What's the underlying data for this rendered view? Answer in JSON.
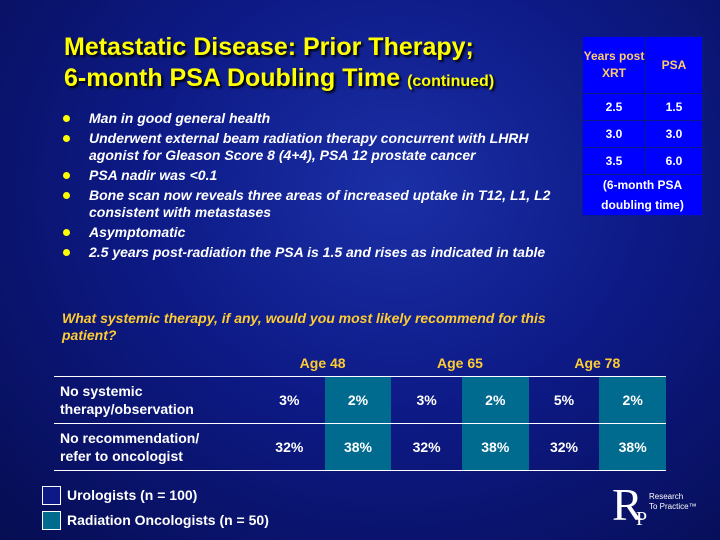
{
  "title": {
    "line1": "Metastatic Disease: Prior Therapy;",
    "line2": "6-month PSA Doubling Time",
    "continued": "(continued)"
  },
  "psa_table": {
    "headers": [
      "Years post XRT",
      "PSA"
    ],
    "rows": [
      [
        "2.5",
        "1.5"
      ],
      [
        "3.0",
        "3.0"
      ],
      [
        "3.5",
        "6.0"
      ]
    ],
    "footer": [
      "(6-month PSA",
      "doubling time)"
    ]
  },
  "bullets": [
    "Man in good general health",
    "Underwent external beam radiation therapy concurrent with LHRH agonist for Gleason Score 8 (4+4), PSA 12 prostate cancer",
    "PSA nadir was <0.1",
    "Bone scan now reveals three areas of increased uptake in T12, L1, L2 consistent with metastases",
    "Asymptomatic",
    "2.5 years post-radiation the PSA is 1.5 and rises as indicated in table"
  ],
  "question": "What systemic therapy, if any, would you most likely recommend for this patient?",
  "results": {
    "ages": [
      "Age 48",
      "Age 65",
      "Age 78"
    ],
    "rows": [
      {
        "label1": "No systemic",
        "label2": "therapy/observation",
        "values": [
          "3%",
          "2%",
          "3%",
          "2%",
          "5%",
          "2%"
        ]
      },
      {
        "label1": "No recommendation/",
        "label2": "refer to oncologist",
        "values": [
          "32%",
          "38%",
          "32%",
          "38%",
          "32%",
          "38%"
        ]
      }
    ]
  },
  "legend": [
    {
      "label": "Urologists  (n = 100)",
      "color": "#0d1a86"
    },
    {
      "label": "Radiation Oncologists  (n = 50)",
      "color": "#006b8f"
    }
  ],
  "logo": {
    "letter_r": "R",
    "letter_p": "P",
    "text1": "Research",
    "text2": "To Practice™"
  }
}
